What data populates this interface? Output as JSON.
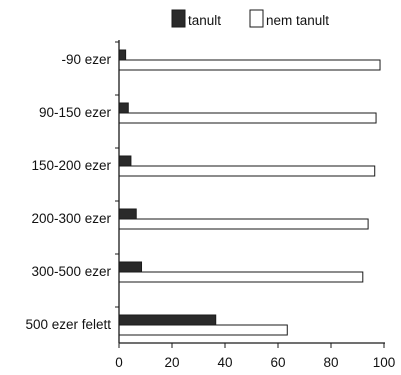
{
  "colors": {
    "tanult": "#2a2a2a",
    "nem_tanult": "#ffffff",
    "outline": "#1a1a1a"
  },
  "chart_data": {
    "type": "bar",
    "orientation": "horizontal",
    "title": "",
    "xlabel": "",
    "ylabel": "",
    "xlim": [
      0,
      100
    ],
    "x_ticks": [
      "0",
      "20",
      "40",
      "60",
      "80",
      "100"
    ],
    "grid": false,
    "legend_position": "top",
    "categories": [
      "-90 ezer",
      "90-150 ezer",
      "150-200 ezer",
      "200-300 ezer",
      "300-500 ezer",
      "500 ezer felett"
    ],
    "series": [
      {
        "name": "tanult",
        "values": [
          2.5,
          3.5,
          4.5,
          6.5,
          8.5,
          36.5
        ]
      },
      {
        "name": "nem tanult",
        "values": [
          98.5,
          97,
          96.5,
          94,
          92,
          63.5
        ]
      }
    ]
  }
}
